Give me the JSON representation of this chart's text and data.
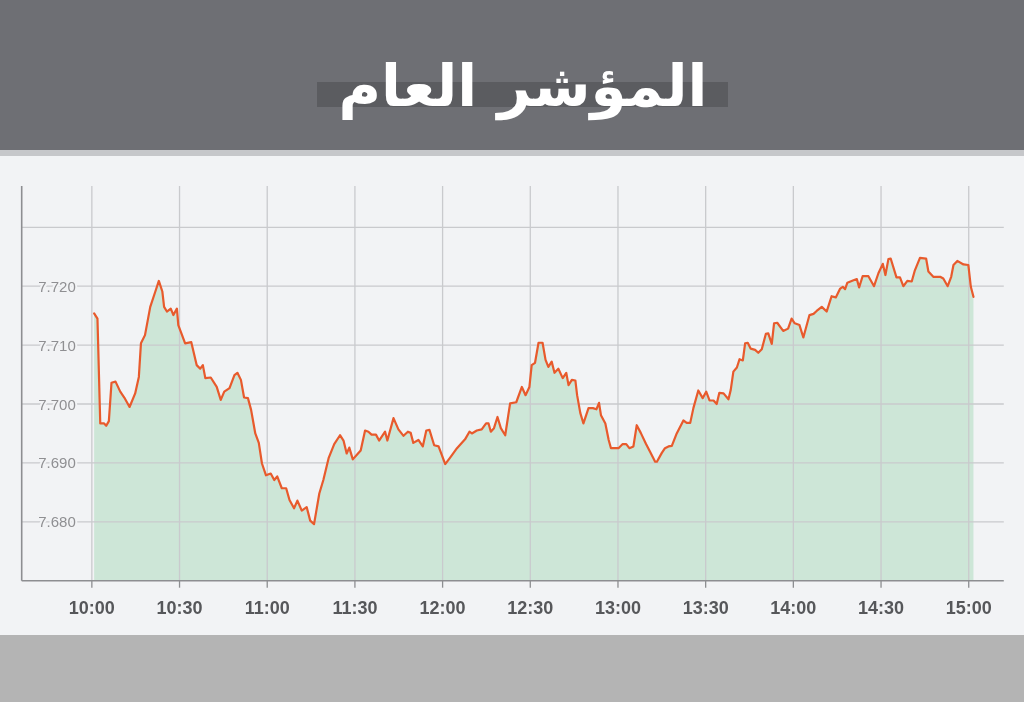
{
  "chart_data": {
    "type": "area",
    "title": "المؤشر العام",
    "x": [
      10.013,
      10.032,
      10.048,
      10.07,
      10.082,
      10.097,
      10.112,
      10.135,
      10.162,
      10.185,
      10.215,
      10.247,
      10.268,
      10.28,
      10.303,
      10.333,
      10.362,
      10.382,
      10.402,
      10.412,
      10.428,
      10.45,
      10.465,
      10.485,
      10.493,
      10.532,
      10.567,
      10.598,
      10.618,
      10.633,
      10.647,
      10.678,
      10.712,
      10.735,
      10.755,
      10.785,
      10.813,
      10.83,
      10.85,
      10.868,
      10.89,
      10.908,
      10.932,
      10.952,
      10.97,
      10.993,
      11.02,
      11.04,
      11.057,
      11.083,
      11.108,
      11.127,
      11.153,
      11.172,
      11.197,
      11.225,
      11.245,
      11.267,
      11.297,
      11.32,
      11.35,
      11.382,
      11.415,
      11.435,
      11.453,
      11.468,
      11.488,
      11.515,
      11.533,
      11.558,
      11.577,
      11.595,
      11.62,
      11.638,
      11.672,
      11.685,
      11.72,
      11.748,
      11.777,
      11.802,
      11.818,
      11.833,
      11.862,
      11.887,
      11.907,
      11.925,
      11.952,
      11.977,
      12.015,
      12.043,
      12.082,
      12.128,
      12.153,
      12.167,
      12.195,
      12.223,
      12.248,
      12.262,
      12.275,
      12.293,
      12.313,
      12.332,
      12.357,
      12.385,
      12.42,
      12.452,
      12.473,
      12.495,
      12.508,
      12.527,
      12.547,
      12.57,
      12.587,
      12.603,
      12.622,
      12.638,
      12.66,
      12.685,
      12.705,
      12.718,
      12.737,
      12.757,
      12.767,
      12.785,
      12.803,
      12.832,
      12.857,
      12.877,
      12.892,
      12.903,
      12.928,
      12.947,
      12.96,
      13.003,
      13.027,
      13.047,
      13.065,
      13.088,
      13.107,
      13.13,
      13.16,
      13.183,
      13.212,
      13.222,
      13.25,
      13.268,
      13.288,
      13.307,
      13.335,
      13.373,
      13.392,
      13.412,
      13.43,
      13.458,
      13.483,
      13.503,
      13.522,
      13.545,
      13.563,
      13.578,
      13.602,
      13.63,
      13.643,
      13.658,
      13.678,
      13.693,
      13.712,
      13.725,
      13.74,
      13.757,
      13.782,
      13.8,
      13.82,
      13.843,
      13.857,
      13.877,
      13.89,
      13.908,
      13.942,
      13.97,
      13.99,
      14.008,
      14.035,
      14.057,
      14.092,
      14.115,
      14.133,
      14.162,
      14.19,
      14.218,
      14.242,
      14.267,
      14.282,
      14.295,
      14.308,
      14.343,
      14.362,
      14.375,
      14.395,
      14.428,
      14.46,
      14.485,
      14.51,
      14.525,
      14.542,
      14.555,
      14.588,
      14.608,
      14.627,
      14.65,
      14.675,
      14.693,
      14.722,
      14.757,
      14.77,
      14.798,
      14.837,
      14.855,
      14.88,
      14.9,
      14.913,
      14.935,
      14.97,
      14.998,
      15.012,
      15.027
    ],
    "series": [
      {
        "color": "#cde6d7",
        "values": [
          7.7154,
          7.7145,
          7.6967,
          7.6967,
          7.6963,
          7.6971,
          7.7036,
          7.7038,
          7.7021,
          7.7011,
          7.6995,
          7.7018,
          7.7046,
          7.7103,
          7.7117,
          7.7165,
          7.7191,
          7.7209,
          7.7191,
          7.7165,
          7.7157,
          7.7162,
          7.7151,
          7.7162,
          7.7134,
          7.7103,
          7.7105,
          7.7066,
          7.706,
          7.7066,
          7.7044,
          7.7045,
          7.7029,
          7.7007,
          7.7021,
          7.7027,
          7.7049,
          7.7053,
          7.7041,
          7.7011,
          7.701,
          7.699,
          7.695,
          7.6934,
          7.6899,
          7.6879,
          7.6882,
          7.6871,
          7.6877,
          7.6857,
          7.6857,
          7.6837,
          7.6823,
          7.6836,
          7.6819,
          7.6825,
          7.6802,
          7.6796,
          7.6848,
          7.6871,
          7.6908,
          7.6932,
          7.6947,
          7.6938,
          7.6916,
          7.6926,
          7.6906,
          7.6915,
          7.6921,
          7.6955,
          7.6953,
          7.6948,
          7.6948,
          7.6938,
          7.6953,
          7.6938,
          7.6976,
          7.6957,
          7.6946,
          7.6953,
          7.6951,
          7.6934,
          7.6939,
          7.6928,
          7.6955,
          7.6956,
          7.693,
          7.6928,
          7.6898,
          7.6909,
          7.6925,
          7.694,
          7.6953,
          7.695,
          7.6955,
          7.6957,
          7.6967,
          7.6967,
          7.6953,
          7.6959,
          7.6978,
          7.6959,
          7.6947,
          7.7001,
          7.7003,
          7.7029,
          7.7015,
          7.7029,
          7.7066,
          7.707,
          7.7104,
          7.7104,
          7.7075,
          7.7063,
          7.7072,
          7.7053,
          7.706,
          7.7044,
          7.7053,
          7.7032,
          7.7041,
          7.704,
          7.7015,
          7.6985,
          7.6967,
          7.6993,
          7.6993,
          7.6991,
          7.7002,
          7.6981,
          7.6967,
          7.6939,
          7.6925,
          7.6925,
          7.6932,
          7.6932,
          7.6925,
          7.6928,
          7.6964,
          7.6951,
          7.6932,
          7.6919,
          7.6902,
          7.6902,
          7.6917,
          7.6925,
          7.6928,
          7.6929,
          7.695,
          7.6972,
          7.6968,
          7.6968,
          7.6993,
          7.7023,
          7.701,
          7.7021,
          7.7006,
          7.7006,
          7.7,
          7.7019,
          7.7018,
          7.7008,
          7.7024,
          7.7055,
          7.7062,
          7.7076,
          7.7074,
          7.7103,
          7.7104,
          7.7094,
          7.7092,
          7.7087,
          7.7093,
          7.7119,
          7.712,
          7.7102,
          7.7137,
          7.7138,
          7.7124,
          7.7128,
          7.7145,
          7.7137,
          7.7134,
          7.7113,
          7.7151,
          7.7153,
          7.7158,
          7.7165,
          7.7157,
          7.7183,
          7.7181,
          7.7196,
          7.7199,
          7.7195,
          7.7206,
          7.721,
          7.7212,
          7.7198,
          7.7217,
          7.7217,
          7.72,
          7.7222,
          7.7238,
          7.7219,
          7.7246,
          7.7247,
          7.7215,
          7.7215,
          7.72,
          7.7209,
          7.7208,
          7.7227,
          7.7248,
          7.7247,
          7.7225,
          7.7216,
          7.7216,
          7.7213,
          7.72,
          7.7216,
          7.7236,
          7.7243,
          7.7237,
          7.7236,
          7.7199,
          7.7182
        ]
      }
    ],
    "xlim": [
      9.6,
      15.2
    ],
    "ylim": [
      7.67,
      7.737
    ],
    "xticks": [
      {
        "value": 10,
        "label": "10:00"
      },
      {
        "value": 10.5,
        "label": "10:30"
      },
      {
        "value": 11,
        "label": "11:00"
      },
      {
        "value": 11.5,
        "label": "11:30"
      },
      {
        "value": 12,
        "label": "12:00"
      },
      {
        "value": 12.5,
        "label": "12:30"
      },
      {
        "value": 13,
        "label": "13:00"
      },
      {
        "value": 13.5,
        "label": "13:30"
      },
      {
        "value": 14,
        "label": "14:00"
      },
      {
        "value": 14.5,
        "label": "14:30"
      },
      {
        "value": 15,
        "label": "15:00"
      }
    ],
    "yticks": [
      {
        "value": 7.68,
        "label": "7.680"
      },
      {
        "value": 7.69,
        "label": "7.690"
      },
      {
        "value": 7.7,
        "label": "7.700"
      },
      {
        "value": 7.71,
        "label": "7.710"
      },
      {
        "value": 7.72,
        "label": "7.720"
      },
      {
        "value": 7.73,
        "label": null
      }
    ],
    "grid": true,
    "marker": "none"
  }
}
